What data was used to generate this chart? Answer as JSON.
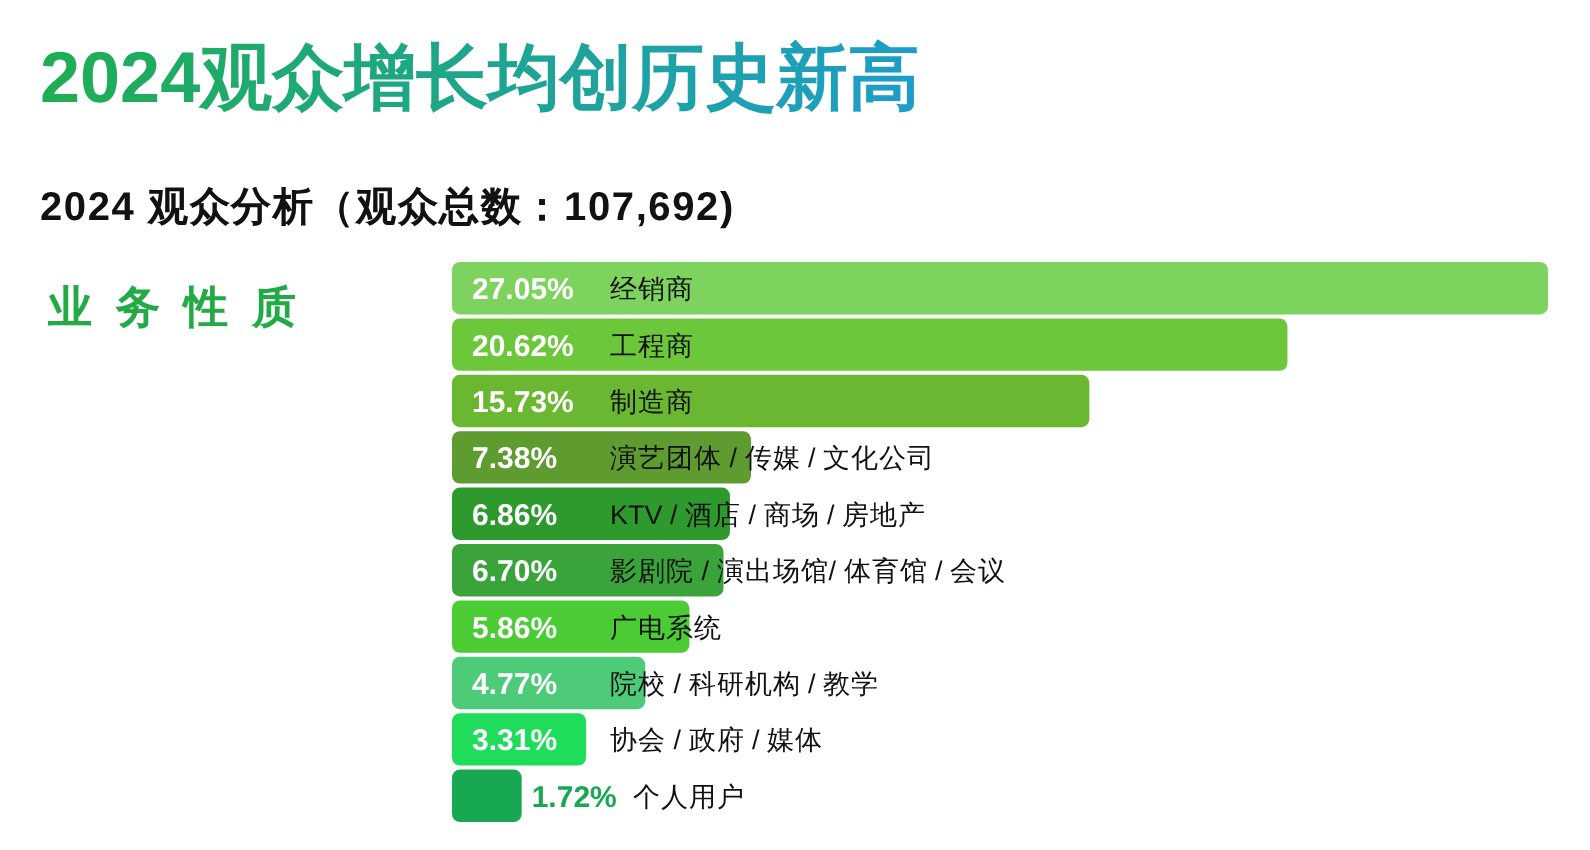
{
  "chart_data": {
    "type": "bar",
    "orientation": "horizontal",
    "title": "2024观众增长均创历史新高",
    "subtitle": "2024 观众分析（观众总数：107,692)",
    "ylabel": "业务性质",
    "categories": [
      "经销商",
      "工程商",
      "制造商",
      "演艺团体 / 传媒 / 文化公司",
      "KTV / 酒店 / 商场 / 房地产",
      "影剧院 / 演出场馆/ 体育馆 / 会议",
      "广电系统",
      "院校 / 科研机构 / 教学",
      "协会 / 政府 / 媒体",
      "个人用户"
    ],
    "values": [
      27.05,
      20.62,
      15.73,
      7.38,
      6.86,
      6.7,
      5.86,
      4.77,
      3.31,
      1.72
    ],
    "value_labels": [
      "27.05%",
      "20.62%",
      "15.73%",
      "7.38%",
      "6.86%",
      "6.70%",
      "5.86%",
      "4.77%",
      "3.31%",
      "1.72%"
    ],
    "colors": [
      "#7ed35f",
      "#6cc83a",
      "#6ab832",
      "#5e9c30",
      "#2e9a2e",
      "#3aa33a",
      "#4ccc34",
      "#4dcb78",
      "#1fdd5a",
      "#18a852"
    ]
  }
}
